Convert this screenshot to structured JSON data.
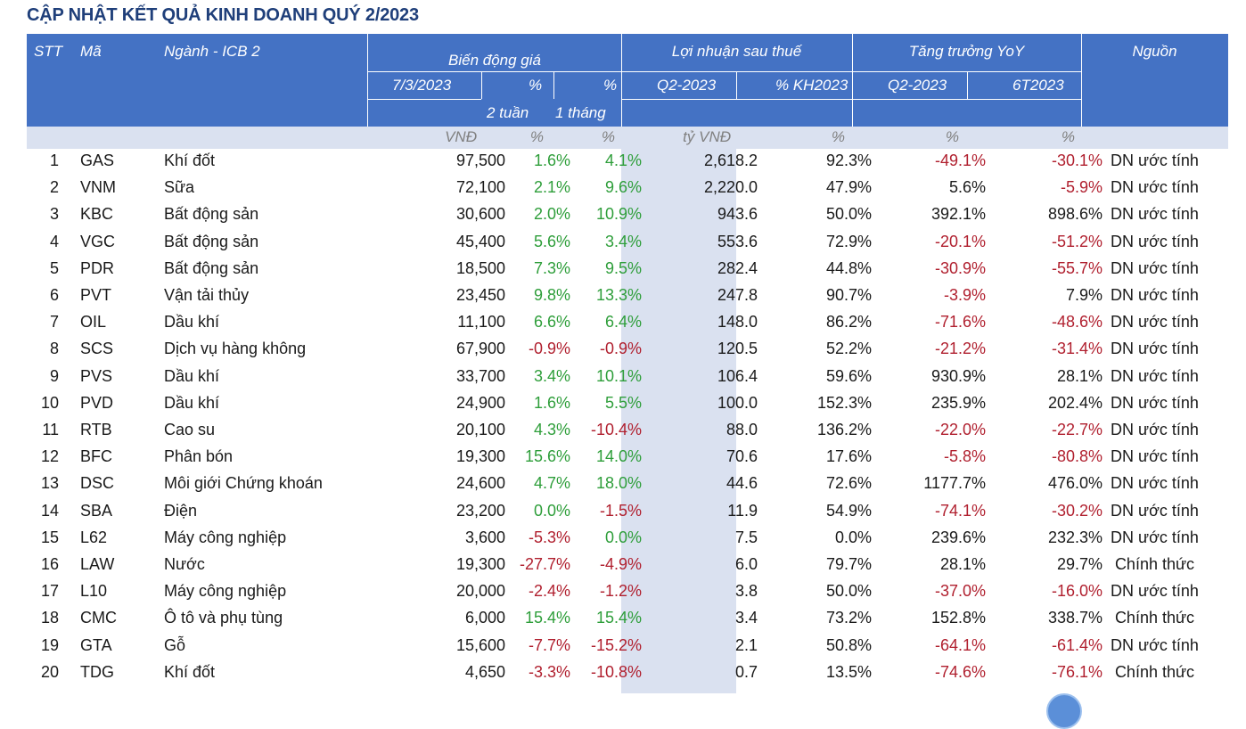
{
  "title": "CẬP NHẬT KẾT QUẢ KINH DOANH QUÝ 2/2023",
  "header": {
    "stt": "STT",
    "ma": "Mã",
    "nganh": "Ngành - ICB 2",
    "bien_dong_gia": "Biến động giá",
    "price_date": "7/3/2023",
    "pct_2w_top": "%",
    "pct_2w_bottom": "2 tuần",
    "pct_1m_top": "%",
    "pct_1m_bottom": "1 tháng",
    "loi_nhuan": "Lợi nhuận sau thuế",
    "q2_2023": "Q2-2023",
    "pct_kh": "% KH2023",
    "tang_truong": "Tăng trưởng YoY",
    "yoy_q2": "Q2-2023",
    "yoy_6t": "6T2023",
    "nguon": "Nguồn"
  },
  "units": {
    "price": "VNĐ",
    "pct_2w": "%",
    "pct_1m": "%",
    "profit": "tỷ VNĐ",
    "pct_kh": "%",
    "yoy_q2": "%",
    "yoy_6t": "%"
  },
  "rows": [
    {
      "stt": "1",
      "ma": "GAS",
      "nganh": "Khí đốt",
      "price": "97,500",
      "p2w": "1.6%",
      "p1m": "4.1%",
      "profit": "2,618.2",
      "kh": "92.3%",
      "yq2": "-49.1%",
      "y6t": "-30.1%",
      "src": "DN ước tính"
    },
    {
      "stt": "2",
      "ma": "VNM",
      "nganh": "Sữa",
      "price": "72,100",
      "p2w": "2.1%",
      "p1m": "9.6%",
      "profit": "2,220.0",
      "kh": "47.9%",
      "yq2": "5.6%",
      "y6t": "-5.9%",
      "src": "DN ước tính"
    },
    {
      "stt": "3",
      "ma": "KBC",
      "nganh": "Bất động sản",
      "price": "30,600",
      "p2w": "2.0%",
      "p1m": "10.9%",
      "profit": "943.6",
      "kh": "50.0%",
      "yq2": "392.1%",
      "y6t": "898.6%",
      "src": "DN ước tính"
    },
    {
      "stt": "4",
      "ma": "VGC",
      "nganh": "Bất động sản",
      "price": "45,400",
      "p2w": "5.6%",
      "p1m": "3.4%",
      "profit": "553.6",
      "kh": "72.9%",
      "yq2": "-20.1%",
      "y6t": "-51.2%",
      "src": "DN ước tính"
    },
    {
      "stt": "5",
      "ma": "PDR",
      "nganh": "Bất động sản",
      "price": "18,500",
      "p2w": "7.3%",
      "p1m": "9.5%",
      "profit": "282.4",
      "kh": "44.8%",
      "yq2": "-30.9%",
      "y6t": "-55.7%",
      "src": "DN ước tính"
    },
    {
      "stt": "6",
      "ma": "PVT",
      "nganh": "Vận tải thủy",
      "price": "23,450",
      "p2w": "9.8%",
      "p1m": "13.3%",
      "profit": "247.8",
      "kh": "90.7%",
      "yq2": "-3.9%",
      "y6t": "7.9%",
      "src": "DN ước tính"
    },
    {
      "stt": "7",
      "ma": "OIL",
      "nganh": "Dầu khí",
      "price": "11,100",
      "p2w": "6.6%",
      "p1m": "6.4%",
      "profit": "148.0",
      "kh": "86.2%",
      "yq2": "-71.6%",
      "y6t": "-48.6%",
      "src": "DN ước tính"
    },
    {
      "stt": "8",
      "ma": "SCS",
      "nganh": "Dịch vụ hàng không",
      "price": "67,900",
      "p2w": "-0.9%",
      "p1m": "-0.9%",
      "profit": "120.5",
      "kh": "52.2%",
      "yq2": "-21.2%",
      "y6t": "-31.4%",
      "src": "DN ước tính"
    },
    {
      "stt": "9",
      "ma": "PVS",
      "nganh": "Dầu khí",
      "price": "33,700",
      "p2w": "3.4%",
      "p1m": "10.1%",
      "profit": "106.4",
      "kh": "59.6%",
      "yq2": "930.9%",
      "y6t": "28.1%",
      "src": "DN ước tính"
    },
    {
      "stt": "10",
      "ma": "PVD",
      "nganh": "Dầu khí",
      "price": "24,900",
      "p2w": "1.6%",
      "p1m": "5.5%",
      "profit": "100.0",
      "kh": "152.3%",
      "yq2": "235.9%",
      "y6t": "202.4%",
      "src": "DN ước tính"
    },
    {
      "stt": "11",
      "ma": "RTB",
      "nganh": "Cao su",
      "price": "20,100",
      "p2w": "4.3%",
      "p1m": "-10.4%",
      "profit": "88.0",
      "kh": "136.2%",
      "yq2": "-22.0%",
      "y6t": "-22.7%",
      "src": "DN ước tính"
    },
    {
      "stt": "12",
      "ma": "BFC",
      "nganh": "Phân bón",
      "price": "19,300",
      "p2w": "15.6%",
      "p1m": "14.0%",
      "profit": "70.6",
      "kh": "17.6%",
      "yq2": "-5.8%",
      "y6t": "-80.8%",
      "src": "DN ước tính"
    },
    {
      "stt": "13",
      "ma": "DSC",
      "nganh": "Môi giới Chứng khoán",
      "price": "24,600",
      "p2w": "4.7%",
      "p1m": "18.0%",
      "profit": "44.6",
      "kh": "72.6%",
      "yq2": "1177.7%",
      "y6t": "476.0%",
      "src": "DN ước tính"
    },
    {
      "stt": "14",
      "ma": "SBA",
      "nganh": "Điện",
      "price": "23,200",
      "p2w": "0.0%",
      "p1m": "-1.5%",
      "profit": "11.9",
      "kh": "54.9%",
      "yq2": "-74.1%",
      "y6t": "-30.2%",
      "src": "DN ước tính"
    },
    {
      "stt": "15",
      "ma": "L62",
      "nganh": "Máy công nghiệp",
      "price": "3,600",
      "p2w": "-5.3%",
      "p1m": "0.0%",
      "profit": "7.5",
      "kh": "0.0%",
      "yq2": "239.6%",
      "y6t": "232.3%",
      "src": "DN ước tính"
    },
    {
      "stt": "16",
      "ma": "LAW",
      "nganh": "Nước",
      "price": "19,300",
      "p2w": "-27.7%",
      "p1m": "-4.9%",
      "profit": "6.0",
      "kh": "79.7%",
      "yq2": "28.1%",
      "y6t": "29.7%",
      "src": "Chính thức"
    },
    {
      "stt": "17",
      "ma": "L10",
      "nganh": "Máy công nghiệp",
      "price": "20,000",
      "p2w": "-2.4%",
      "p1m": "-1.2%",
      "profit": "3.8",
      "kh": "50.0%",
      "yq2": "-37.0%",
      "y6t": "-16.0%",
      "src": "DN ước tính"
    },
    {
      "stt": "18",
      "ma": "CMC",
      "nganh": "Ô tô và phụ tùng",
      "price": "6,000",
      "p2w": "15.4%",
      "p1m": "15.4%",
      "profit": "3.4",
      "kh": "73.2%",
      "yq2": "152.8%",
      "y6t": "338.7%",
      "src": "Chính thức"
    },
    {
      "stt": "19",
      "ma": "GTA",
      "nganh": "Gỗ",
      "price": "15,600",
      "p2w": "-7.7%",
      "p1m": "-15.2%",
      "profit": "2.1",
      "kh": "50.8%",
      "yq2": "-64.1%",
      "y6t": "-61.4%",
      "src": "DN ước tính"
    },
    {
      "stt": "20",
      "ma": "TDG",
      "nganh": "Khí đốt",
      "price": "4,650",
      "p2w": "-3.3%",
      "p1m": "-10.8%",
      "profit": "0.7",
      "kh": "13.5%",
      "yq2": "-74.6%",
      "y6t": "-76.1%",
      "src": "Chính thức"
    }
  ]
}
